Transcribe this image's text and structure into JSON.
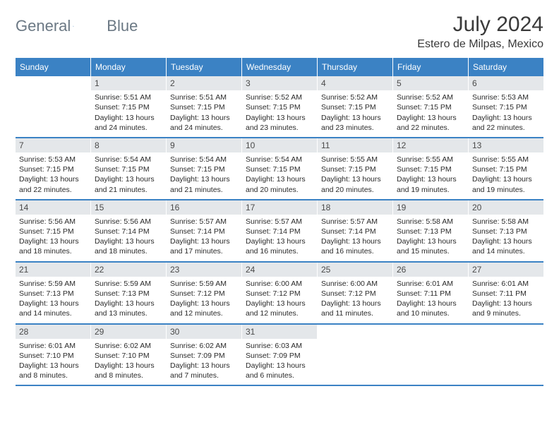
{
  "logo": {
    "text1": "General",
    "text2": "Blue"
  },
  "title": "July 2024",
  "subtitle": "Estero de Milpas, Mexico",
  "colors": {
    "header_bg": "#3b82c4",
    "header_text": "#ffffff",
    "daynum_bg": "#e4e7ea",
    "row_border": "#3b82c4",
    "page_bg": "#ffffff"
  },
  "weekday_headers": [
    "Sunday",
    "Monday",
    "Tuesday",
    "Wednesday",
    "Thursday",
    "Friday",
    "Saturday"
  ],
  "weeks": [
    [
      {
        "n": "",
        "sr": "",
        "ss": "",
        "dl": ""
      },
      {
        "n": "1",
        "sr": "5:51 AM",
        "ss": "7:15 PM",
        "dl": "13 hours and 24 minutes."
      },
      {
        "n": "2",
        "sr": "5:51 AM",
        "ss": "7:15 PM",
        "dl": "13 hours and 24 minutes."
      },
      {
        "n": "3",
        "sr": "5:52 AM",
        "ss": "7:15 PM",
        "dl": "13 hours and 23 minutes."
      },
      {
        "n": "4",
        "sr": "5:52 AM",
        "ss": "7:15 PM",
        "dl": "13 hours and 23 minutes."
      },
      {
        "n": "5",
        "sr": "5:52 AM",
        "ss": "7:15 PM",
        "dl": "13 hours and 22 minutes."
      },
      {
        "n": "6",
        "sr": "5:53 AM",
        "ss": "7:15 PM",
        "dl": "13 hours and 22 minutes."
      }
    ],
    [
      {
        "n": "7",
        "sr": "5:53 AM",
        "ss": "7:15 PM",
        "dl": "13 hours and 22 minutes."
      },
      {
        "n": "8",
        "sr": "5:54 AM",
        "ss": "7:15 PM",
        "dl": "13 hours and 21 minutes."
      },
      {
        "n": "9",
        "sr": "5:54 AM",
        "ss": "7:15 PM",
        "dl": "13 hours and 21 minutes."
      },
      {
        "n": "10",
        "sr": "5:54 AM",
        "ss": "7:15 PM",
        "dl": "13 hours and 20 minutes."
      },
      {
        "n": "11",
        "sr": "5:55 AM",
        "ss": "7:15 PM",
        "dl": "13 hours and 20 minutes."
      },
      {
        "n": "12",
        "sr": "5:55 AM",
        "ss": "7:15 PM",
        "dl": "13 hours and 19 minutes."
      },
      {
        "n": "13",
        "sr": "5:55 AM",
        "ss": "7:15 PM",
        "dl": "13 hours and 19 minutes."
      }
    ],
    [
      {
        "n": "14",
        "sr": "5:56 AM",
        "ss": "7:15 PM",
        "dl": "13 hours and 18 minutes."
      },
      {
        "n": "15",
        "sr": "5:56 AM",
        "ss": "7:14 PM",
        "dl": "13 hours and 18 minutes."
      },
      {
        "n": "16",
        "sr": "5:57 AM",
        "ss": "7:14 PM",
        "dl": "13 hours and 17 minutes."
      },
      {
        "n": "17",
        "sr": "5:57 AM",
        "ss": "7:14 PM",
        "dl": "13 hours and 16 minutes."
      },
      {
        "n": "18",
        "sr": "5:57 AM",
        "ss": "7:14 PM",
        "dl": "13 hours and 16 minutes."
      },
      {
        "n": "19",
        "sr": "5:58 AM",
        "ss": "7:13 PM",
        "dl": "13 hours and 15 minutes."
      },
      {
        "n": "20",
        "sr": "5:58 AM",
        "ss": "7:13 PM",
        "dl": "13 hours and 14 minutes."
      }
    ],
    [
      {
        "n": "21",
        "sr": "5:59 AM",
        "ss": "7:13 PM",
        "dl": "13 hours and 14 minutes."
      },
      {
        "n": "22",
        "sr": "5:59 AM",
        "ss": "7:13 PM",
        "dl": "13 hours and 13 minutes."
      },
      {
        "n": "23",
        "sr": "5:59 AM",
        "ss": "7:12 PM",
        "dl": "13 hours and 12 minutes."
      },
      {
        "n": "24",
        "sr": "6:00 AM",
        "ss": "7:12 PM",
        "dl": "13 hours and 12 minutes."
      },
      {
        "n": "25",
        "sr": "6:00 AM",
        "ss": "7:12 PM",
        "dl": "13 hours and 11 minutes."
      },
      {
        "n": "26",
        "sr": "6:01 AM",
        "ss": "7:11 PM",
        "dl": "13 hours and 10 minutes."
      },
      {
        "n": "27",
        "sr": "6:01 AM",
        "ss": "7:11 PM",
        "dl": "13 hours and 9 minutes."
      }
    ],
    [
      {
        "n": "28",
        "sr": "6:01 AM",
        "ss": "7:10 PM",
        "dl": "13 hours and 8 minutes."
      },
      {
        "n": "29",
        "sr": "6:02 AM",
        "ss": "7:10 PM",
        "dl": "13 hours and 8 minutes."
      },
      {
        "n": "30",
        "sr": "6:02 AM",
        "ss": "7:09 PM",
        "dl": "13 hours and 7 minutes."
      },
      {
        "n": "31",
        "sr": "6:03 AM",
        "ss": "7:09 PM",
        "dl": "13 hours and 6 minutes."
      },
      {
        "n": "",
        "sr": "",
        "ss": "",
        "dl": ""
      },
      {
        "n": "",
        "sr": "",
        "ss": "",
        "dl": ""
      },
      {
        "n": "",
        "sr": "",
        "ss": "",
        "dl": ""
      }
    ]
  ],
  "labels": {
    "sunrise": "Sunrise:",
    "sunset": "Sunset:",
    "daylight": "Daylight:"
  }
}
